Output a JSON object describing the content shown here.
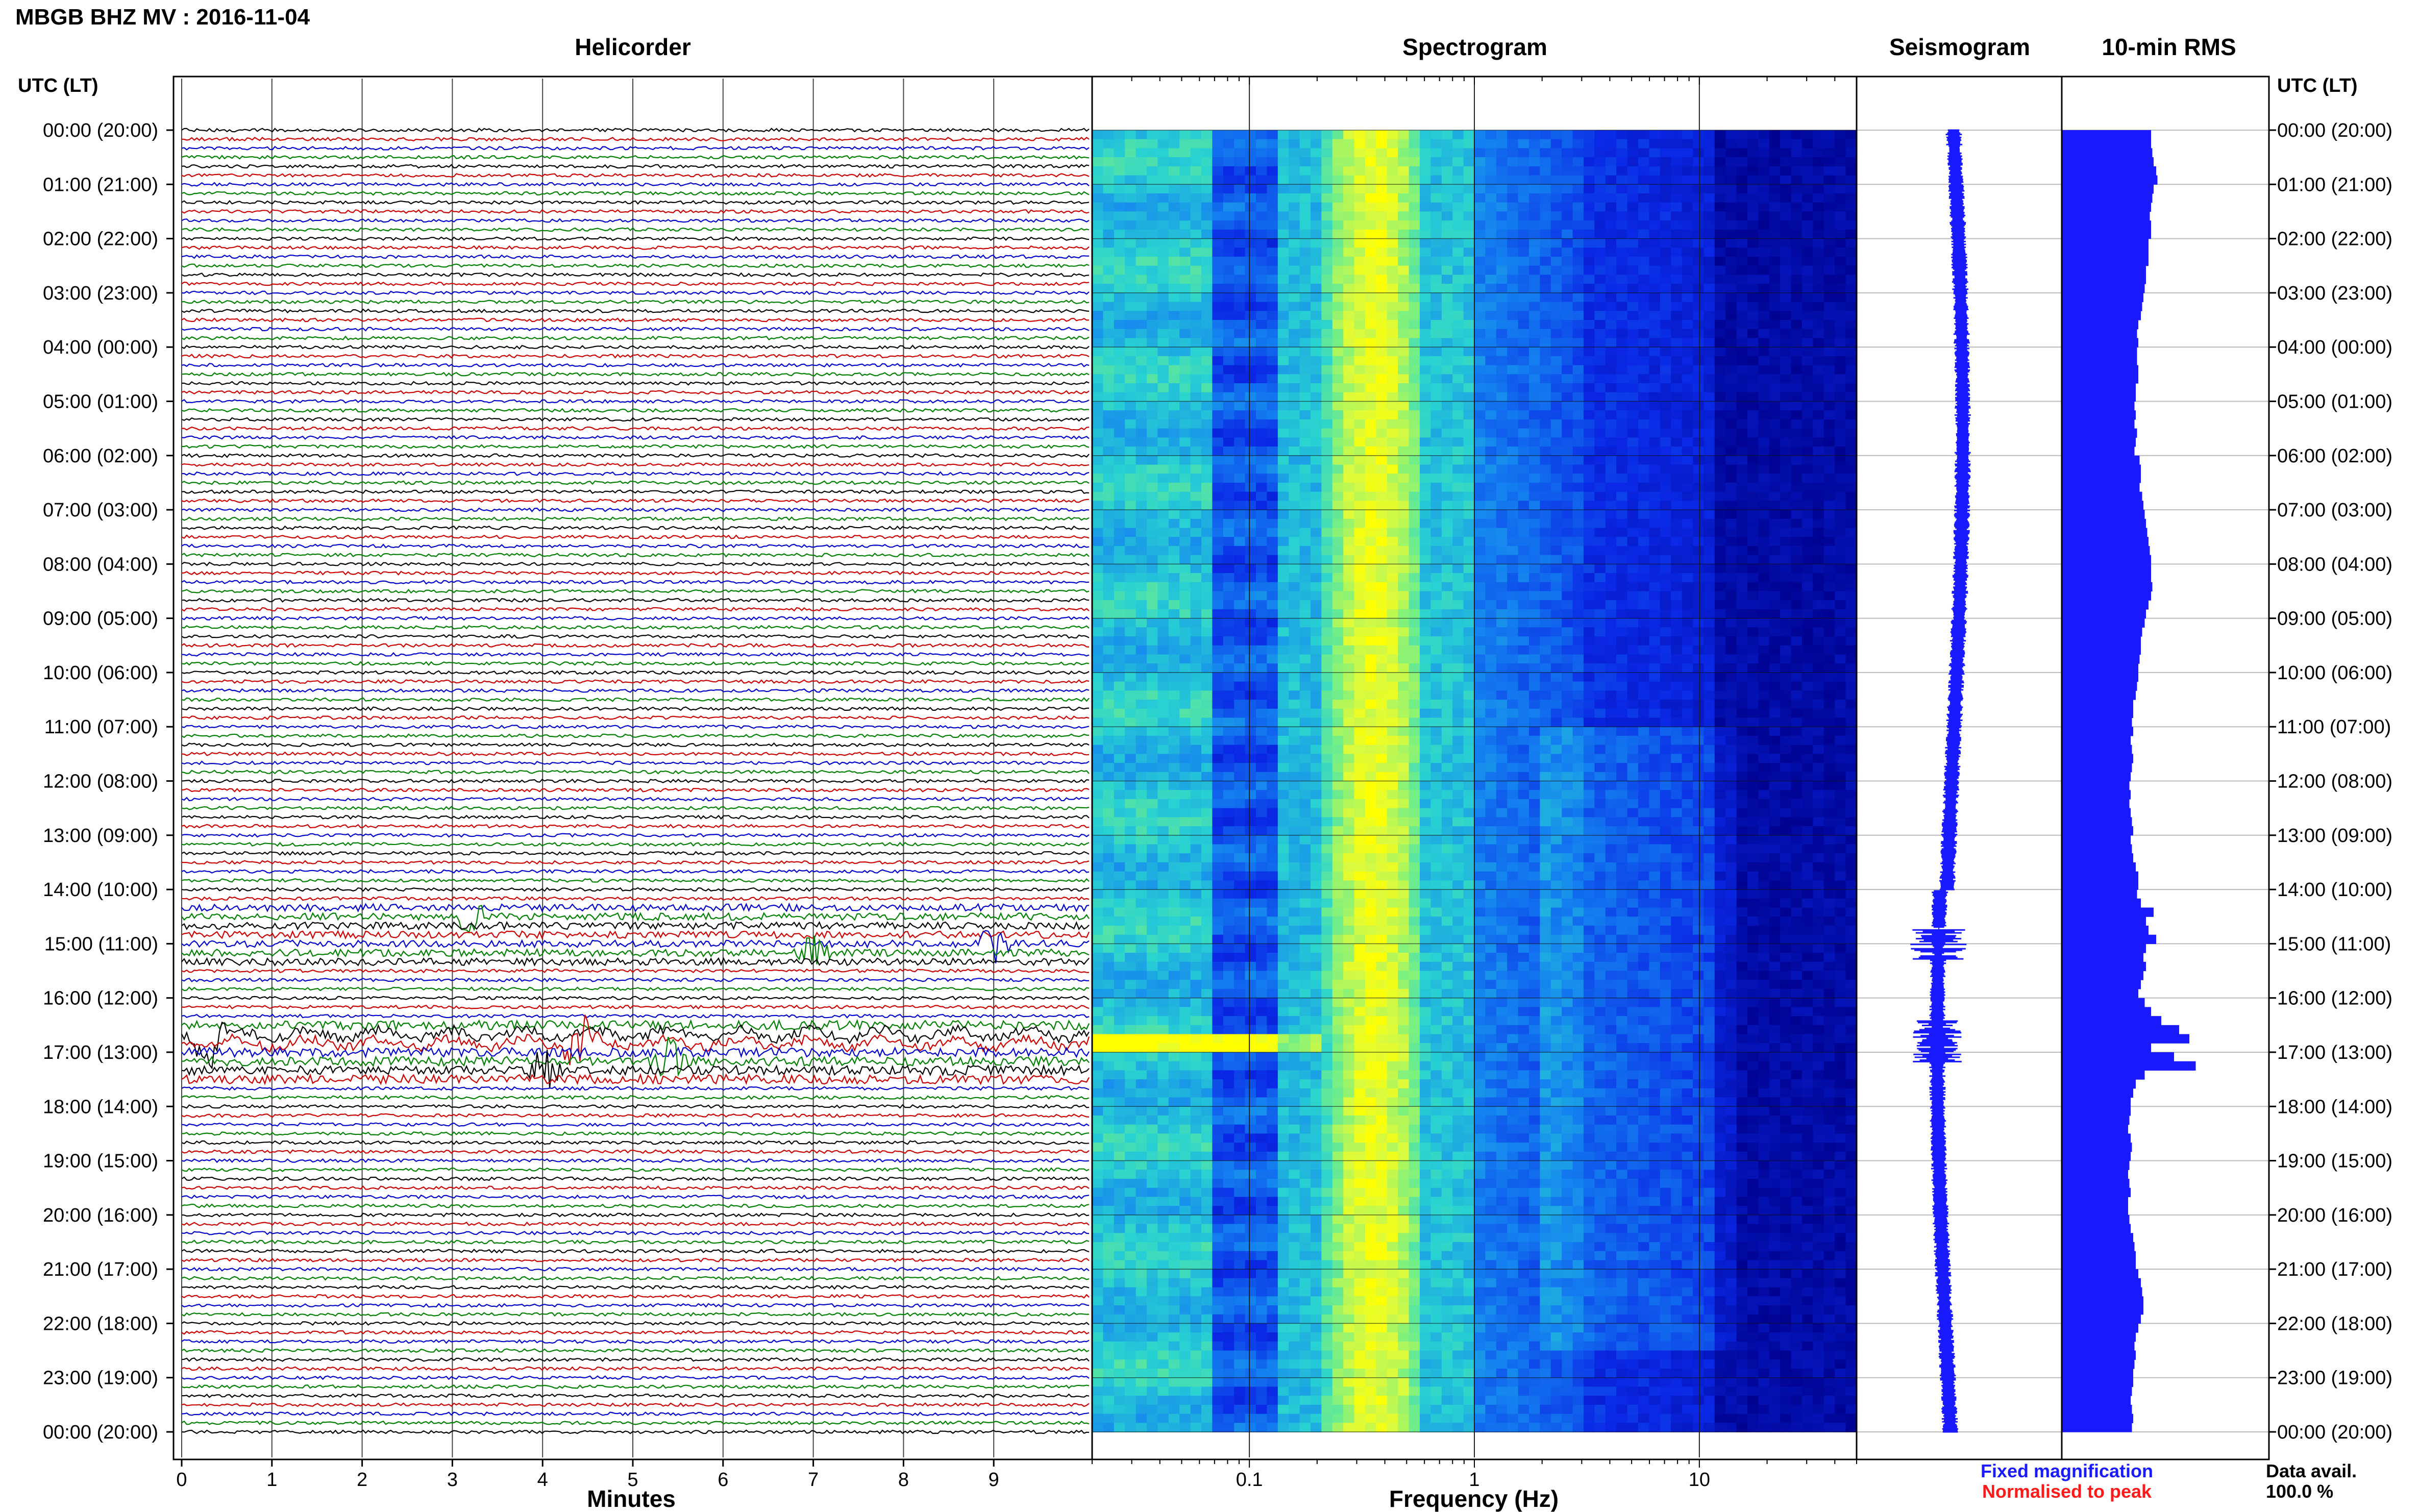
{
  "header": {
    "title": "MBGB BHZ MV : 2016-11-04",
    "utc_label_left": "UTC (LT)",
    "utc_label_right": "UTC (LT)"
  },
  "panels": {
    "helicorder_title": "Helicorder",
    "spectrogram_title": "Spectrogram",
    "seismogram_title": "Seismogram",
    "rms_title": "10-min RMS"
  },
  "axes": {
    "minutes_label": "Minutes",
    "frequency_label": "Frequency (Hz)",
    "minute_ticks": [
      "0",
      "1",
      "2",
      "3",
      "4",
      "5",
      "6",
      "7",
      "8",
      "9"
    ],
    "frequency_ticks": [
      "0.1",
      "1",
      "10"
    ],
    "time_labels": [
      "00:00 (20:00)",
      "01:00 (21:00)",
      "02:00 (22:00)",
      "03:00 (23:00)",
      "04:00 (00:00)",
      "05:00 (01:00)",
      "06:00 (02:00)",
      "07:00 (03:00)",
      "08:00 (04:00)",
      "09:00 (05:00)",
      "10:00 (06:00)",
      "11:00 (07:00)",
      "12:00 (08:00)",
      "13:00 (09:00)",
      "14:00 (10:00)",
      "15:00 (11:00)",
      "16:00 (12:00)",
      "17:00 (13:00)",
      "18:00 (14:00)",
      "19:00 (15:00)",
      "20:00 (16:00)",
      "21:00 (17:00)",
      "22:00 (18:00)",
      "23:00 (19:00)",
      "00:00 (20:00)"
    ]
  },
  "legend": {
    "fixed": "Fixed magnification",
    "normalised": "Normalised to peak",
    "fixed_color": "#1a1aff",
    "normalised_color": "#ff1a1a"
  },
  "data_avail": {
    "label": "Data avail.",
    "value": "100.0 %"
  },
  "colors": {
    "trace_cycle": [
      "#000000",
      "#cc0000",
      "#0000cc",
      "#008000"
    ],
    "seismogram": "#1a1aff",
    "rms": "#1a1aff",
    "spec_low": "#00008b",
    "spec_high": "#ffff00"
  },
  "chart_data": {
    "type": "heatmap",
    "helicorder": {
      "rows": 144,
      "minutes_per_row": 10,
      "xlim_minutes": [
        0,
        10
      ],
      "events": [
        {
          "row": 87,
          "minute": 3.2,
          "trace_color": "black"
        },
        {
          "row": 90,
          "minute": 9.0,
          "trace_color": "blue"
        },
        {
          "row": 91,
          "minute": 7.0,
          "trace_color": "green"
        },
        {
          "row": 100,
          "minute": 0.3,
          "trace_color": "green"
        },
        {
          "row": 101,
          "minute": 4.4,
          "trace_color": "red"
        },
        {
          "row": 103,
          "minute": 5.4,
          "trace_color": "green"
        },
        {
          "row": 104,
          "minute": 4.0,
          "trace_color": "black"
        }
      ]
    },
    "spectrogram": {
      "freq_range_hz": [
        0.02,
        50
      ],
      "x_scale": "log",
      "dominant_band_hz": [
        0.2,
        0.5
      ],
      "strong_event_hour": 16.85
    },
    "rms_10min": [
      0.7,
      0.7,
      0.71,
      0.72,
      0.74,
      0.75,
      0.72,
      0.71,
      0.7,
      0.69,
      0.7,
      0.7,
      0.68,
      0.68,
      0.68,
      0.66,
      0.66,
      0.65,
      0.64,
      0.63,
      0.62,
      0.6,
      0.59,
      0.6,
      0.59,
      0.59,
      0.6,
      0.6,
      0.58,
      0.58,
      0.57,
      0.58,
      0.57,
      0.59,
      0.58,
      0.57,
      0.61,
      0.62,
      0.62,
      0.61,
      0.63,
      0.64,
      0.65,
      0.66,
      0.67,
      0.68,
      0.69,
      0.7,
      0.7,
      0.7,
      0.71,
      0.7,
      0.68,
      0.66,
      0.65,
      0.63,
      0.62,
      0.62,
      0.61,
      0.6,
      0.6,
      0.59,
      0.58,
      0.56,
      0.56,
      0.55,
      0.56,
      0.54,
      0.55,
      0.56,
      0.55,
      0.54,
      0.53,
      0.54,
      0.53,
      0.54,
      0.55,
      0.56,
      0.54,
      0.55,
      0.56,
      0.58,
      0.6,
      0.6,
      0.59,
      0.62,
      0.72,
      0.66,
      0.68,
      0.74,
      0.66,
      0.64,
      0.66,
      0.64,
      0.62,
      0.6,
      0.65,
      0.7,
      0.78,
      0.92,
      1.0,
      0.7,
      0.88,
      1.05,
      0.65,
      0.58,
      0.56,
      0.54,
      0.54,
      0.53,
      0.52,
      0.54,
      0.55,
      0.54,
      0.53,
      0.52,
      0.53,
      0.54,
      0.52,
      0.52,
      0.53,
      0.54,
      0.56,
      0.57,
      0.58,
      0.58,
      0.6,
      0.62,
      0.63,
      0.64,
      0.64,
      0.62,
      0.6,
      0.58,
      0.57,
      0.58,
      0.57,
      0.56,
      0.56,
      0.55,
      0.54,
      0.55,
      0.56,
      0.55
    ]
  }
}
